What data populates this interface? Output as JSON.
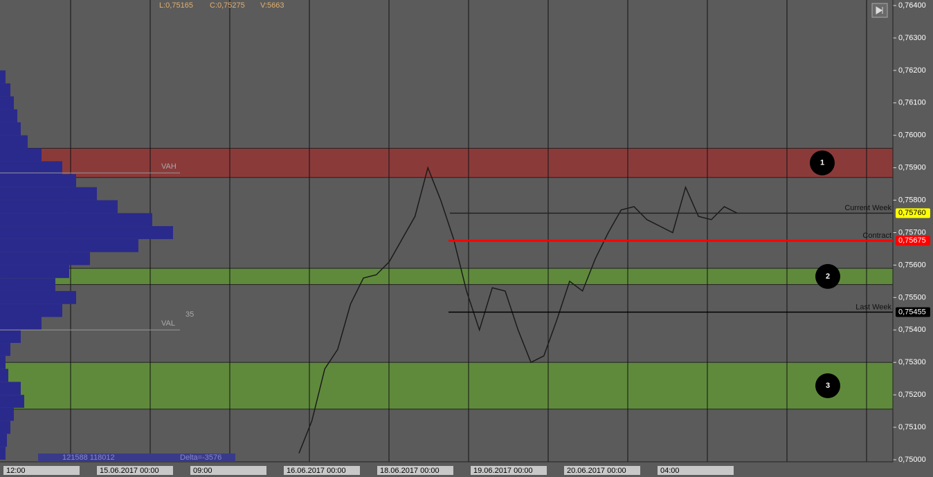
{
  "chart_data": {
    "type": "line",
    "header": [
      "L:0,75165",
      "C:0,75275",
      "V:5663"
    ],
    "categories": [
      null,
      null,
      null,
      null,
      null,
      null,
      null,
      null,
      null,
      null,
      null,
      null,
      null,
      null,
      null,
      null,
      null,
      null,
      null,
      null,
      null,
      null,
      null,
      null,
      null,
      null,
      null,
      null,
      null,
      null,
      null,
      null,
      null,
      null,
      null
    ],
    "values": [
      0.7502,
      0.7512,
      0.7528,
      0.7534,
      0.7548,
      0.7556,
      0.7557,
      0.7561,
      0.7568,
      0.7575,
      0.759,
      0.758,
      0.7568,
      0.7552,
      0.754,
      0.7553,
      0.7552,
      0.754,
      0.753,
      0.7532,
      0.7543,
      0.7555,
      0.7552,
      0.7562,
      0.757,
      0.7577,
      0.7578,
      0.7574,
      0.7572,
      0.757,
      0.7584,
      0.7575,
      0.7574,
      0.7578,
      0.7576
    ],
    "color": "#1a1a1a",
    "ylim": [
      0.75,
      0.764
    ],
    "yticks": [
      {
        "value": 0.75,
        "label": "0,75000"
      },
      {
        "value": 0.751,
        "label": "0,75100"
      },
      {
        "value": 0.752,
        "label": "0,75200"
      },
      {
        "value": 0.753,
        "label": "0,75300"
      },
      {
        "value": 0.754,
        "label": "0,75400"
      },
      {
        "value": 0.755,
        "label": "0,75500"
      },
      {
        "value": 0.756,
        "label": "0,75600"
      },
      {
        "value": 0.757,
        "label": "0,75700"
      },
      {
        "value": 0.758,
        "label": "0,75800"
      },
      {
        "value": 0.759,
        "label": "0,75900"
      },
      {
        "value": 0.76,
        "label": "0,76000"
      },
      {
        "value": 0.761,
        "label": "0,76100"
      },
      {
        "value": 0.762,
        "label": "0,76200"
      },
      {
        "value": 0.763,
        "label": "0,76300"
      },
      {
        "value": 0.764,
        "label": "0,76400"
      }
    ],
    "grid": true,
    "xtick_labels": [
      "12:00",
      "15.06.2017 00:00",
      "09:00",
      "16.06.2017 00:00",
      "18.06.2017 00:00",
      "19.06.2017 00:00",
      "20.06.2017 00:00",
      "04:00"
    ],
    "zones": [
      {
        "label": "1",
        "from": 0.7587,
        "to": 0.7596,
        "color": "#8b3a3a"
      },
      {
        "label": "2",
        "from": 0.7554,
        "to": 0.7559,
        "color": "#5f8a3c"
      },
      {
        "label": "3",
        "from": 0.75156,
        "to": 0.753,
        "color": "#5f8a3c"
      }
    ],
    "levels": [
      {
        "name": "Current Week",
        "value": 0.7576,
        "label": "0,75760",
        "color": "#ffff00"
      },
      {
        "name": "Contract",
        "value": 0.75675,
        "label": "0,75675",
        "color": "#ff0000"
      },
      {
        "name": "Last Week",
        "value": 0.75455,
        "label": "0,75455",
        "color": "#000000"
      }
    ],
    "value_area": [
      {
        "name": "VAH",
        "value": 0.75884
      },
      {
        "name": "VAL",
        "value": 0.754
      }
    ],
    "val_note": "35",
    "profile": {
      "color": "#2a2a8c",
      "levels": [
        0.75,
        0.7504,
        0.7508,
        0.7512,
        0.7516,
        0.752,
        0.7524,
        0.7528,
        0.7532,
        0.7536,
        0.754,
        0.7544,
        0.7548,
        0.7552,
        0.7556,
        0.756,
        0.7564,
        0.7568,
        0.7572,
        0.7576,
        0.758,
        0.7584,
        0.7588,
        0.7592,
        0.7596,
        0.76,
        0.7604,
        0.7608,
        0.7612,
        0.7616
      ],
      "values": [
        8,
        10,
        15,
        20,
        35,
        30,
        12,
        8,
        15,
        30,
        60,
        90,
        110,
        80,
        100,
        130,
        200,
        250,
        220,
        170,
        140,
        110,
        90,
        60,
        40,
        30,
        25,
        20,
        15,
        8
      ]
    },
    "summary": [
      "121588 118012",
      "Delta=-3576"
    ]
  }
}
